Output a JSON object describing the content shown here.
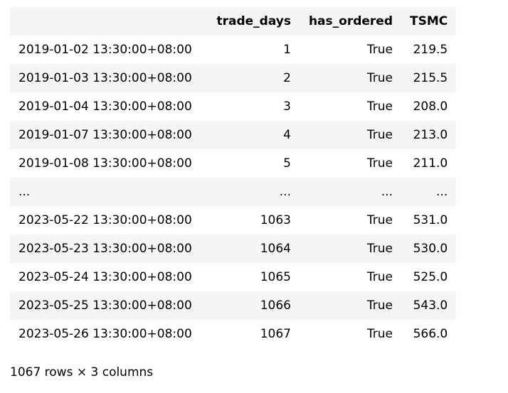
{
  "table": {
    "columns": [
      "",
      "trade_days",
      "has_ordered",
      "TSMC"
    ],
    "rows": [
      {
        "index": "2019-01-02 13:30:00+08:00",
        "trade_days": "1",
        "has_ordered": "True",
        "TSMC": "219.5"
      },
      {
        "index": "2019-01-03 13:30:00+08:00",
        "trade_days": "2",
        "has_ordered": "True",
        "TSMC": "215.5"
      },
      {
        "index": "2019-01-04 13:30:00+08:00",
        "trade_days": "3",
        "has_ordered": "True",
        "TSMC": "208.0"
      },
      {
        "index": "2019-01-07 13:30:00+08:00",
        "trade_days": "4",
        "has_ordered": "True",
        "TSMC": "213.0"
      },
      {
        "index": "2019-01-08 13:30:00+08:00",
        "trade_days": "5",
        "has_ordered": "True",
        "TSMC": "211.0"
      },
      {
        "index": "...",
        "trade_days": "...",
        "has_ordered": "...",
        "TSMC": "..."
      },
      {
        "index": "2023-05-22 13:30:00+08:00",
        "trade_days": "1063",
        "has_ordered": "True",
        "TSMC": "531.0"
      },
      {
        "index": "2023-05-23 13:30:00+08:00",
        "trade_days": "1064",
        "has_ordered": "True",
        "TSMC": "530.0"
      },
      {
        "index": "2023-05-24 13:30:00+08:00",
        "trade_days": "1065",
        "has_ordered": "True",
        "TSMC": "525.0"
      },
      {
        "index": "2023-05-25 13:30:00+08:00",
        "trade_days": "1066",
        "has_ordered": "True",
        "TSMC": "543.0"
      },
      {
        "index": "2023-05-26 13:30:00+08:00",
        "trade_days": "1067",
        "has_ordered": "True",
        "TSMC": "566.0"
      }
    ]
  },
  "shape_text": "1067 rows × 3 columns"
}
